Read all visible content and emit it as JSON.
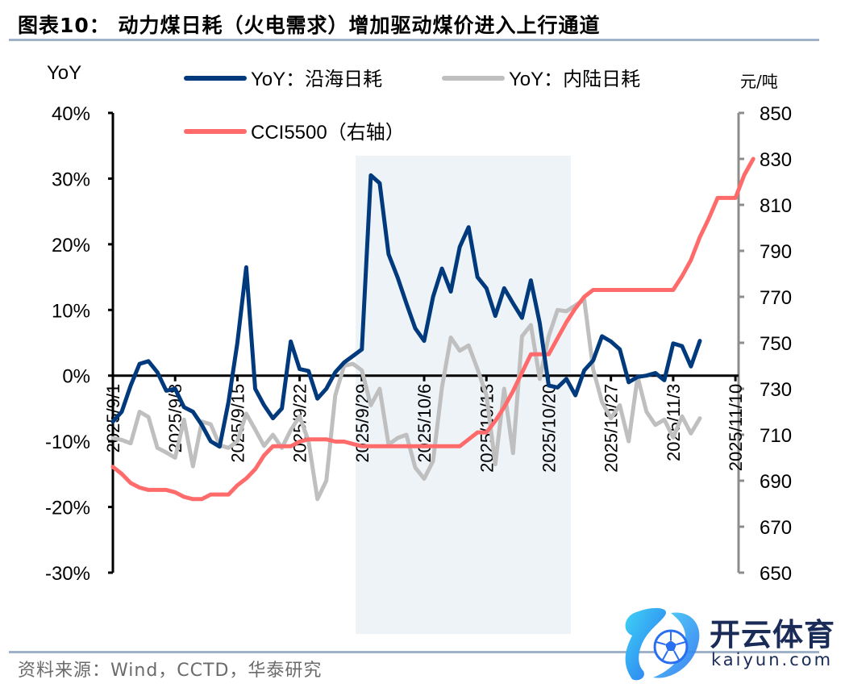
{
  "header": {
    "title": "图表10：  动力煤日耗（火电需求）增加驱动煤价进入上行通道"
  },
  "footer": {
    "source": "资料来源：Wind，CCTD，华泰研究"
  },
  "watermark": {
    "cn": "开云体育",
    "en": "kaiyun.com",
    "icon": "soccer-ball-logo-icon"
  },
  "colors": {
    "coastal": "#003a7d",
    "inland": "#bfbfbf",
    "cci": "#ff6b6b",
    "shade": "#eef3f8",
    "rule": "#9fb2c9",
    "right_axis": "#8c8c8c"
  },
  "chart_data": {
    "type": "line",
    "title": "动力煤日耗（火电需求）增加驱动煤价进入上行通道",
    "xlabel": "",
    "ylabel_left": "YoY",
    "ylabel_right": "元/吨",
    "ylim_left": [
      -30,
      40
    ],
    "ylim_right": [
      650,
      850
    ],
    "yticks_left": [
      "40%",
      "30%",
      "20%",
      "10%",
      "0%",
      "-10%",
      "-20%",
      "-30%"
    ],
    "yticks_right": [
      "850",
      "830",
      "810",
      "790",
      "770",
      "750",
      "730",
      "710",
      "690",
      "670",
      "650"
    ],
    "xticks": [
      "2025/9/1",
      "2025/9/8",
      "2025/9/15",
      "2025/9/22",
      "2025/9/29",
      "2025/10/6",
      "2025/10/13",
      "2025/10/20",
      "2025/10/27",
      "2025/11/3",
      "2025/11/10"
    ],
    "x_unit": "days since 2025/9/1",
    "shaded_region": {
      "from_day": 27.3,
      "to_day": 51.5,
      "note": "highlighted period"
    },
    "grid": false,
    "legend": [
      {
        "label": "YoY：沿海日耗",
        "series": "coastal"
      },
      {
        "label": "YoY：内陆日耗",
        "series": "inland"
      },
      {
        "label": "CCI5500（右轴）",
        "series": "cci"
      }
    ],
    "series": [
      {
        "name": "YoY：沿海日耗",
        "key": "coastal",
        "axis": "left",
        "unit": "%",
        "points": [
          [
            0,
            -7
          ],
          [
            1,
            -5.5
          ],
          [
            2,
            -1.5
          ],
          [
            3,
            1.8
          ],
          [
            4,
            2.2
          ],
          [
            5,
            0.5
          ],
          [
            6,
            -2.3
          ],
          [
            7,
            -2.0
          ],
          [
            8,
            -4.8
          ],
          [
            9,
            -5.5
          ],
          [
            10,
            -7.5
          ],
          [
            11,
            -10
          ],
          [
            12,
            -10.8
          ],
          [
            13,
            -4
          ],
          [
            14,
            5
          ],
          [
            15,
            16.5
          ],
          [
            16,
            -2
          ],
          [
            17,
            -4.5
          ],
          [
            18,
            -6.5
          ],
          [
            19,
            -5
          ],
          [
            20,
            5.2
          ],
          [
            21,
            1
          ],
          [
            22,
            0.7
          ],
          [
            23,
            -3.5
          ],
          [
            24,
            -2
          ],
          [
            25,
            0.5
          ],
          [
            26,
            2
          ],
          [
            27,
            3
          ],
          [
            28,
            4
          ],
          [
            29,
            30.5
          ],
          [
            30,
            29.3
          ],
          [
            31,
            18.5
          ],
          [
            32,
            15
          ],
          [
            33,
            11
          ],
          [
            34,
            7.2
          ],
          [
            35,
            5.3
          ],
          [
            36,
            12
          ],
          [
            37,
            16.3
          ],
          [
            38,
            12.8
          ],
          [
            39,
            19.6
          ],
          [
            40,
            22.6
          ],
          [
            41,
            15
          ],
          [
            42,
            13.3
          ],
          [
            43,
            9.1
          ],
          [
            44,
            13.3
          ],
          [
            45,
            11
          ],
          [
            46,
            8.8
          ],
          [
            47,
            14.5
          ],
          [
            48,
            8
          ],
          [
            49,
            -1.5
          ],
          [
            50,
            -1.8
          ],
          [
            51,
            -0.5
          ],
          [
            52,
            -3
          ],
          [
            53,
            0.8
          ],
          [
            54,
            2.3
          ],
          [
            55,
            6
          ],
          [
            56,
            5.2
          ],
          [
            57,
            4
          ],
          [
            58,
            -1
          ],
          [
            59,
            -0.2
          ],
          [
            60,
            0
          ],
          [
            61,
            0.4
          ],
          [
            62,
            -0.7
          ],
          [
            63,
            4.9
          ],
          [
            64,
            4.5
          ],
          [
            65,
            1.4
          ],
          [
            66,
            5.3
          ]
        ]
      },
      {
        "name": "YoY：内陆日耗",
        "key": "inland",
        "axis": "left",
        "unit": "%",
        "points": [
          [
            0,
            -9.5
          ],
          [
            1,
            -9.8
          ],
          [
            2,
            -10.3
          ],
          [
            3,
            -5.5
          ],
          [
            4,
            -6.3
          ],
          [
            5,
            -11
          ],
          [
            6,
            -11.7
          ],
          [
            7,
            -12.5
          ],
          [
            8,
            -6.7
          ],
          [
            9,
            -13.8
          ],
          [
            10,
            -7
          ],
          [
            11,
            -7.4
          ],
          [
            12,
            -10.6
          ],
          [
            13,
            -11
          ],
          [
            14,
            -10
          ],
          [
            15,
            -5.8
          ],
          [
            16,
            -8.2
          ],
          [
            17,
            -10.7
          ],
          [
            18,
            -9
          ],
          [
            19,
            -11
          ],
          [
            20,
            -8.3
          ],
          [
            21,
            -6.2
          ],
          [
            22,
            -10
          ],
          [
            23,
            -18.8
          ],
          [
            24,
            -16
          ],
          [
            25,
            -3
          ],
          [
            26,
            1.5
          ],
          [
            27,
            1.8
          ],
          [
            28,
            0.8
          ],
          [
            29,
            -4.5
          ],
          [
            30,
            -2
          ],
          [
            31,
            -10.5
          ],
          [
            32,
            -9.5
          ],
          [
            33,
            -9
          ],
          [
            34,
            -14
          ],
          [
            35,
            -15.7
          ],
          [
            36,
            -13
          ],
          [
            37,
            -1.8
          ],
          [
            38,
            5.8
          ],
          [
            39,
            3.8
          ],
          [
            40,
            4.6
          ],
          [
            41,
            1
          ],
          [
            42,
            -3
          ],
          [
            43,
            -13.5
          ],
          [
            44,
            -2
          ],
          [
            45,
            -11.8
          ],
          [
            46,
            6
          ],
          [
            47,
            7.7
          ],
          [
            48,
            -0.5
          ],
          [
            49,
            6
          ],
          [
            50,
            10
          ],
          [
            51,
            9.8
          ],
          [
            52,
            10.7
          ],
          [
            53,
            11.6
          ],
          [
            54,
            1
          ],
          [
            55,
            -4
          ],
          [
            56,
            -6.5
          ],
          [
            57,
            -4.5
          ],
          [
            58,
            -10
          ],
          [
            59,
            -0.2
          ],
          [
            60,
            -5.5
          ],
          [
            61,
            -7.5
          ],
          [
            62,
            -6.7
          ],
          [
            63,
            -9.4
          ],
          [
            64,
            -6.2
          ],
          [
            65,
            -8.8
          ],
          [
            66,
            -6.5
          ]
        ]
      },
      {
        "name": "CCI5500（右轴）",
        "key": "cci",
        "axis": "right",
        "unit": "元/吨",
        "points": [
          [
            0,
            696
          ],
          [
            1,
            693
          ],
          [
            2,
            689
          ],
          [
            3,
            687
          ],
          [
            4,
            686
          ],
          [
            5,
            686
          ],
          [
            6,
            686
          ],
          [
            7,
            685
          ],
          [
            8,
            683
          ],
          [
            9,
            682
          ],
          [
            10,
            682
          ],
          [
            11,
            684
          ],
          [
            12,
            684
          ],
          [
            13,
            684
          ],
          [
            14,
            688
          ],
          [
            15,
            691
          ],
          [
            16,
            695
          ],
          [
            17,
            701
          ],
          [
            18,
            705
          ],
          [
            19,
            705
          ],
          [
            20,
            705
          ],
          [
            21,
            707
          ],
          [
            22,
            708
          ],
          [
            23,
            708
          ],
          [
            24,
            708
          ],
          [
            25,
            707
          ],
          [
            26,
            707
          ],
          [
            27,
            706
          ],
          [
            28,
            705
          ],
          [
            29,
            705
          ],
          [
            30,
            705
          ],
          [
            31,
            705
          ],
          [
            32,
            705
          ],
          [
            33,
            705
          ],
          [
            34,
            705
          ],
          [
            35,
            705
          ],
          [
            36,
            705
          ],
          [
            37,
            705
          ],
          [
            38,
            705
          ],
          [
            39,
            705
          ],
          [
            40,
            708
          ],
          [
            41,
            711
          ],
          [
            42,
            711
          ],
          [
            43,
            716
          ],
          [
            44,
            722
          ],
          [
            45,
            729
          ],
          [
            46,
            737
          ],
          [
            47,
            745
          ],
          [
            48,
            745
          ],
          [
            49,
            745
          ],
          [
            50,
            752
          ],
          [
            51,
            759
          ],
          [
            52,
            765
          ],
          [
            53,
            770
          ],
          [
            54,
            773
          ],
          [
            55,
            773
          ],
          [
            56,
            773
          ],
          [
            57,
            773
          ],
          [
            58,
            773
          ],
          [
            59,
            773
          ],
          [
            60,
            773
          ],
          [
            61,
            773
          ],
          [
            62,
            773
          ],
          [
            63,
            773
          ],
          [
            64,
            779
          ],
          [
            65,
            786
          ],
          [
            66,
            796
          ],
          [
            67,
            804
          ],
          [
            68,
            813
          ],
          [
            69,
            813
          ],
          [
            70,
            813
          ],
          [
            71,
            823
          ],
          [
            72,
            830
          ]
        ]
      }
    ]
  }
}
